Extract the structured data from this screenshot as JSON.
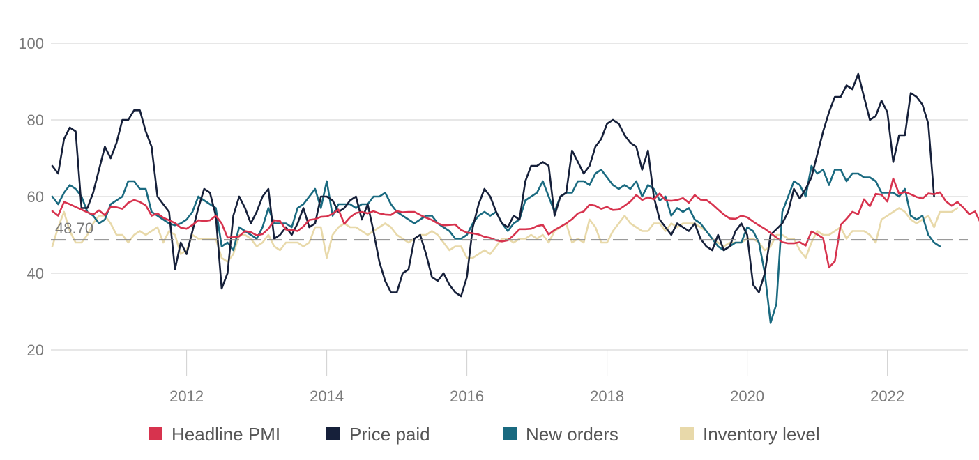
{
  "chart_data": {
    "type": "line",
    "title": "",
    "xlabel": "",
    "ylabel": "",
    "x_start": "2010-02",
    "x_frequency": "monthly",
    "x_ticks": [
      "2012",
      "2014",
      "2016",
      "2018",
      "2020",
      "2022"
    ],
    "y_ticks": [
      20,
      40,
      60,
      80,
      100
    ],
    "ylim": [
      20,
      100
    ],
    "grid": true,
    "legend_position": "bottom",
    "reference_line": {
      "value": 48.7,
      "label": "48.70",
      "style": "dashed"
    },
    "series": [
      {
        "name": "Headline PMI",
        "color": "#d7334e",
        "values": [
          56.2,
          55.0,
          58.6,
          58.0,
          57.3,
          56.6,
          55.9,
          55.3,
          56.4,
          55.1,
          57.3,
          57.2,
          56.8,
          58.4,
          59.1,
          58.6,
          57.7,
          55.0,
          55.6,
          54.5,
          53.8,
          53.1,
          51.9,
          51.6,
          52.6,
          53.8,
          53.6,
          53.8,
          55.0,
          53.0,
          49.3,
          49.4,
          49.6,
          51.0,
          50.7,
          49.9,
          50.2,
          51.6,
          53.8,
          53.6,
          51.4,
          51.3,
          51.0,
          52.2,
          53.9,
          54.1,
          54.7,
          54.8,
          55.5,
          56.6,
          52.9,
          54.6,
          55.7,
          56.0,
          55.6,
          56.2,
          55.6,
          55.3,
          55.2,
          56.2,
          55.9,
          56.0,
          56.0,
          55.2,
          54.5,
          53.9,
          53.0,
          52.5,
          52.6,
          52.7,
          51.3,
          50.6,
          50.4,
          50.1,
          49.5,
          49.2,
          48.6,
          48.3,
          48.6,
          49.9,
          51.5,
          51.5,
          51.6,
          52.3,
          52.6,
          50.1,
          51.3,
          52.1,
          53.0,
          54.1,
          55.6,
          56.1,
          57.9,
          57.6,
          56.8,
          57.3,
          56.5,
          56.6,
          57.6,
          58.7,
          60.4,
          59.1,
          59.8,
          59.3,
          60.8,
          59.0,
          58.9,
          59.1,
          59.6,
          58.4,
          60.4,
          59.2,
          59.1,
          58.0,
          56.6,
          55.3,
          54.3,
          54.2,
          55.0,
          54.6,
          53.5,
          52.5,
          51.6,
          50.5,
          49.3,
          48.1,
          47.8,
          47.8,
          48.1,
          47.2,
          50.9,
          50.1,
          49.1,
          41.5,
          43.1,
          52.6,
          54.2,
          56.0,
          55.4,
          59.3,
          57.5,
          60.7,
          60.5,
          58.7,
          64.7,
          60.7,
          61.2,
          60.6,
          59.9,
          59.5,
          60.8,
          60.6,
          61.1,
          58.8,
          57.6,
          58.6,
          57.1,
          55.4,
          56.1,
          53.0,
          52.8
        ]
      },
      {
        "name": "Price paid",
        "color": "#16203a",
        "values": [
          68.0,
          66.0,
          75.0,
          78.0,
          77.0,
          57.0,
          57.0,
          61.0,
          67.0,
          73.0,
          70.0,
          74.0,
          80.0,
          80.0,
          82.5,
          82.5,
          77.0,
          73.0,
          60.0,
          58.0,
          56.0,
          41.0,
          48.0,
          45.0,
          51.0,
          57.0,
          62.0,
          61.0,
          55.0,
          36.0,
          40.0,
          55.0,
          60.0,
          57.0,
          53.0,
          56.0,
          60.0,
          62.0,
          49.0,
          50.0,
          52.0,
          50.0,
          53.0,
          57.0,
          52.0,
          53.0,
          60.0,
          60.0,
          59.0,
          56.0,
          57.0,
          59.0,
          60.0,
          54.0,
          58.0,
          51.0,
          43.0,
          38.0,
          35.0,
          35.0,
          40.0,
          41.0,
          49.0,
          50.0,
          45.0,
          39.0,
          38.0,
          40.0,
          37.0,
          35.0,
          34.0,
          39.0,
          52.0,
          58.0,
          62.0,
          60.0,
          56.0,
          53.0,
          52.0,
          55.0,
          54.0,
          64.0,
          68.0,
          68.0,
          69.0,
          68.0,
          55.0,
          60.0,
          61.0,
          72.0,
          69.0,
          66.0,
          68.0,
          73.0,
          75.0,
          79.0,
          80.0,
          79.0,
          76.0,
          74.0,
          73.0,
          67.0,
          72.0,
          60.0,
          54.0,
          52.0,
          50.0,
          53.0,
          52.0,
          51.0,
          53.0,
          49.0,
          47.0,
          46.0,
          50.0,
          46.0,
          47.0,
          51.0,
          53.0,
          50.0,
          37.0,
          35.0,
          40.0,
          50.0,
          51.5,
          53.0,
          56.0,
          62.0,
          59.5,
          62.0,
          65.0,
          71.0,
          77.0,
          82.0,
          86.0,
          86.0,
          89.0,
          88.0,
          92.0,
          86.0,
          80.0,
          81.0,
          85.0,
          82.0,
          69.0,
          76.0,
          76.0,
          87.0,
          86.0,
          84.0,
          79.0,
          60.0
        ]
      },
      {
        "name": "New orders",
        "color": "#1a6a80",
        "values": [
          60.0,
          58.0,
          61.0,
          63.0,
          62.0,
          60.0,
          56.0,
          55.0,
          53.0,
          54.0,
          58.0,
          59.0,
          60.0,
          64.0,
          64.0,
          62.0,
          62.0,
          56.0,
          55.0,
          54.0,
          53.0,
          52.5,
          53.0,
          54.0,
          56.0,
          60.0,
          59.0,
          58.0,
          57.0,
          47.0,
          48.0,
          46.0,
          52.0,
          51.0,
          50.0,
          49.0,
          52.0,
          57.0,
          53.0,
          53.0,
          53.0,
          52.0,
          57.0,
          58.0,
          60.0,
          62.0,
          57.0,
          64.0,
          55.0,
          58.0,
          58.0,
          58.0,
          57.0,
          58.0,
          58.0,
          60.0,
          60.0,
          61.0,
          58.0,
          56.0,
          55.0,
          54.0,
          53.0,
          54.0,
          55.0,
          55.0,
          53.0,
          52.0,
          51.0,
          49.0,
          49.0,
          50.0,
          53.0,
          55.0,
          56.0,
          55.0,
          56.0,
          53.0,
          51.0,
          53.0,
          54.0,
          59.0,
          60.0,
          61.0,
          64.0,
          60.0,
          56.0,
          60.0,
          61.0,
          61.0,
          64.0,
          64.0,
          63.0,
          66.0,
          67.0,
          65.0,
          63.0,
          62.0,
          63.0,
          62.0,
          64.0,
          60.0,
          63.0,
          62.0,
          59.0,
          60.0,
          55.0,
          57.0,
          56.0,
          57.0,
          54.0,
          53.0,
          51.0,
          49.0,
          47.0,
          46.0,
          47.0,
          48.0,
          48.0,
          52.0,
          51.0,
          48.0,
          40.0,
          27.0,
          32.0,
          56.0,
          60.0,
          64.0,
          63.0,
          60.0,
          68.0,
          66.0,
          67.0,
          63.0,
          67.0,
          67.0,
          64.0,
          66.0,
          66.0,
          65.0,
          65.0,
          64.0,
          61.0,
          61.0,
          61.0,
          60.0,
          62.0,
          55.0,
          54.0,
          55.0,
          50.0,
          48.0,
          47.0
        ]
      },
      {
        "name": "Inventory level",
        "color": "#e8d9aa",
        "values": [
          47.0,
          52.0,
          56.0,
          51.0,
          48.0,
          48.0,
          50.0,
          53.0,
          55.0,
          55.0,
          53.0,
          50.0,
          50.0,
          48.0,
          50.0,
          51.0,
          50.0,
          51.0,
          52.0,
          48.0,
          51.0,
          50.0,
          45.0,
          46.0,
          50.0,
          49.0,
          49.0,
          49.0,
          49.0,
          44.0,
          43.0,
          45.0,
          50.0,
          50.0,
          49.0,
          47.0,
          48.0,
          50.0,
          47.0,
          46.0,
          48.0,
          48.0,
          48.0,
          47.0,
          48.0,
          52.0,
          52.0,
          44.0,
          50.0,
          52.0,
          53.0,
          52.0,
          52.0,
          51.0,
          50.0,
          51.0,
          52.0,
          53.0,
          52.0,
          50.0,
          49.0,
          48.0,
          49.0,
          50.0,
          50.0,
          51.0,
          50.0,
          48.0,
          46.0,
          47.0,
          47.0,
          44.0,
          44.0,
          45.0,
          46.0,
          45.0,
          47.0,
          49.0,
          49.0,
          48.0,
          49.0,
          49.0,
          50.0,
          49.0,
          50.0,
          48.0,
          51.0,
          52.0,
          53.0,
          48.0,
          49.0,
          48.0,
          54.0,
          52.0,
          48.0,
          48.0,
          51.0,
          53.0,
          55.0,
          53.0,
          52.0,
          51.0,
          51.0,
          53.0,
          53.0,
          51.0,
          53.0,
          52.0,
          53.0,
          53.0,
          53.0,
          52.0,
          51.0,
          49.0,
          48.0,
          47.0,
          48.0,
          48.0,
          48.0,
          49.0,
          49.0,
          48.0,
          46.0,
          47.0,
          50.0,
          50.0,
          49.0,
          49.0,
          46.0,
          44.0,
          48.0,
          51.0,
          50.0,
          50.0,
          51.0,
          52.0,
          49.0,
          51.0,
          51.0,
          51.0,
          50.0,
          48.0,
          54.0,
          55.0,
          56.0,
          57.0,
          56.0,
          54.0,
          53.0,
          54.0,
          55.0,
          52.0,
          56.0,
          56.0,
          56.0,
          57.0
        ]
      }
    ]
  }
}
